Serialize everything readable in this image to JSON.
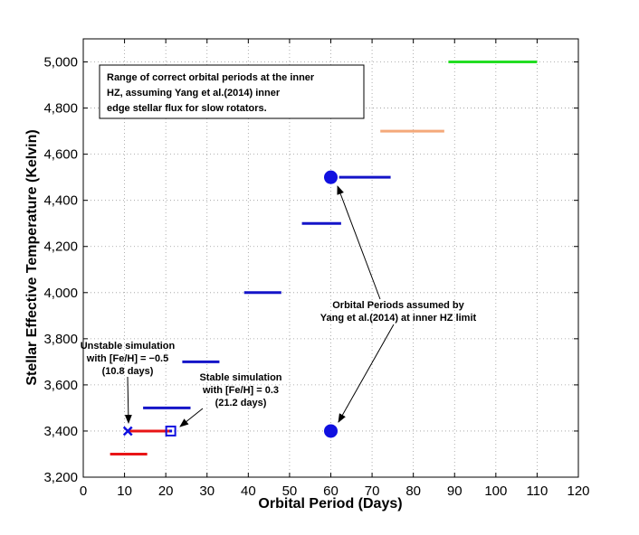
{
  "chart_data": {
    "type": "scatter",
    "xlabel": "Orbital Period (Days)",
    "ylabel": "Stellar Effective Temperature (Kelvin)",
    "xlim": [
      0,
      120
    ],
    "ylim": [
      3200,
      5100
    ],
    "x_ticks": [
      0,
      10,
      20,
      30,
      40,
      50,
      60,
      70,
      80,
      90,
      100,
      110,
      120
    ],
    "y_ticks": [
      3200,
      3400,
      3600,
      3800,
      4000,
      4200,
      4400,
      4600,
      4800,
      5000
    ],
    "y_tick_labels": [
      "3,200",
      "3,400",
      "3,600",
      "3,800",
      "4,000",
      "4,200",
      "4,400",
      "4,600",
      "4,800",
      "5,000"
    ],
    "grid": true,
    "ranges": [
      {
        "temp": 3300,
        "x_start": 6.5,
        "x_end": 15.5,
        "color": "#e81416"
      },
      {
        "temp": 3400,
        "x_start": 10.8,
        "x_end": 21.2,
        "color": "#e81416"
      },
      {
        "temp": 3500,
        "x_start": 14.5,
        "x_end": 26,
        "color": "#1414c8"
      },
      {
        "temp": 3700,
        "x_start": 24,
        "x_end": 33,
        "color": "#1414c8"
      },
      {
        "temp": 4000,
        "x_start": 39,
        "x_end": 48,
        "color": "#1414c8"
      },
      {
        "temp": 4300,
        "x_start": 53,
        "x_end": 62.5,
        "color": "#1414c8"
      },
      {
        "temp": 4500,
        "x_start": 62,
        "x_end": 74.5,
        "color": "#1414c8"
      },
      {
        "temp": 4700,
        "x_start": 72,
        "x_end": 87.5,
        "color": "#f4a97a"
      },
      {
        "temp": 5000,
        "x_start": 88.5,
        "x_end": 110,
        "color": "#22dd22"
      }
    ],
    "assumed_points": [
      {
        "x": 60,
        "y": 4500
      },
      {
        "x": 60,
        "y": 3400
      }
    ],
    "unstable_marker": {
      "x": 10.8,
      "y": 3400
    },
    "stable_marker": {
      "x": 21.2,
      "y": 3400
    },
    "legend_box_text": [
      "Range of correct orbital periods at the inner",
      "HZ, assuming Yang et al.(2014) inner",
      "edge stellar flux for slow rotators."
    ],
    "annotations": {
      "unstable": [
        "Unstable simulation",
        "with  [Fe/H] = −0.5",
        "(10.8 days)"
      ],
      "stable": [
        "Stable simulation",
        "with [Fe/H] = 0.3",
        "(21.2 days)"
      ],
      "assumed": [
        "Orbital Periods assumed by",
        "Yang et al.(2014) at inner HZ limit"
      ]
    }
  }
}
